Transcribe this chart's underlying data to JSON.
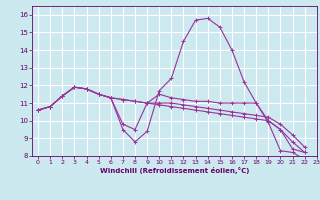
{
  "title": "",
  "xlabel": "Windchill (Refroidissement éolien,°C)",
  "ylabel": "",
  "background_color": "#cce9f0",
  "grid_color": "#ffffff",
  "line_color": "#993399",
  "xlim": [
    -0.5,
    23
  ],
  "ylim": [
    8,
    16.5
  ],
  "xticks": [
    0,
    1,
    2,
    3,
    4,
    5,
    6,
    7,
    8,
    9,
    10,
    11,
    12,
    13,
    14,
    15,
    16,
    17,
    18,
    19,
    20,
    21,
    22,
    23
  ],
  "yticks": [
    8,
    9,
    10,
    11,
    12,
    13,
    14,
    15,
    16
  ],
  "series": [
    [
      10.6,
      10.8,
      11.4,
      11.9,
      11.8,
      11.5,
      11.3,
      9.5,
      8.8,
      9.4,
      11.7,
      12.4,
      14.5,
      15.7,
      15.8,
      15.3,
      14.0,
      12.2,
      11.0,
      9.9,
      8.3,
      8.2,
      7.8
    ],
    [
      10.6,
      10.8,
      11.4,
      11.9,
      11.8,
      11.5,
      11.3,
      9.8,
      9.5,
      11.0,
      11.5,
      11.3,
      11.2,
      11.1,
      11.1,
      11.0,
      11.0,
      11.0,
      11.0,
      10.0,
      9.5,
      8.4,
      8.2
    ],
    [
      10.6,
      10.8,
      11.4,
      11.9,
      11.8,
      11.5,
      11.3,
      11.2,
      11.1,
      11.0,
      11.0,
      11.0,
      10.9,
      10.8,
      10.7,
      10.6,
      10.5,
      10.4,
      10.3,
      10.2,
      9.8,
      9.2,
      8.5
    ],
    [
      10.6,
      10.8,
      11.4,
      11.9,
      11.8,
      11.5,
      11.3,
      11.2,
      11.1,
      11.0,
      10.9,
      10.8,
      10.7,
      10.6,
      10.5,
      10.4,
      10.3,
      10.2,
      10.1,
      10.0,
      9.5,
      8.8,
      8.2
    ]
  ]
}
